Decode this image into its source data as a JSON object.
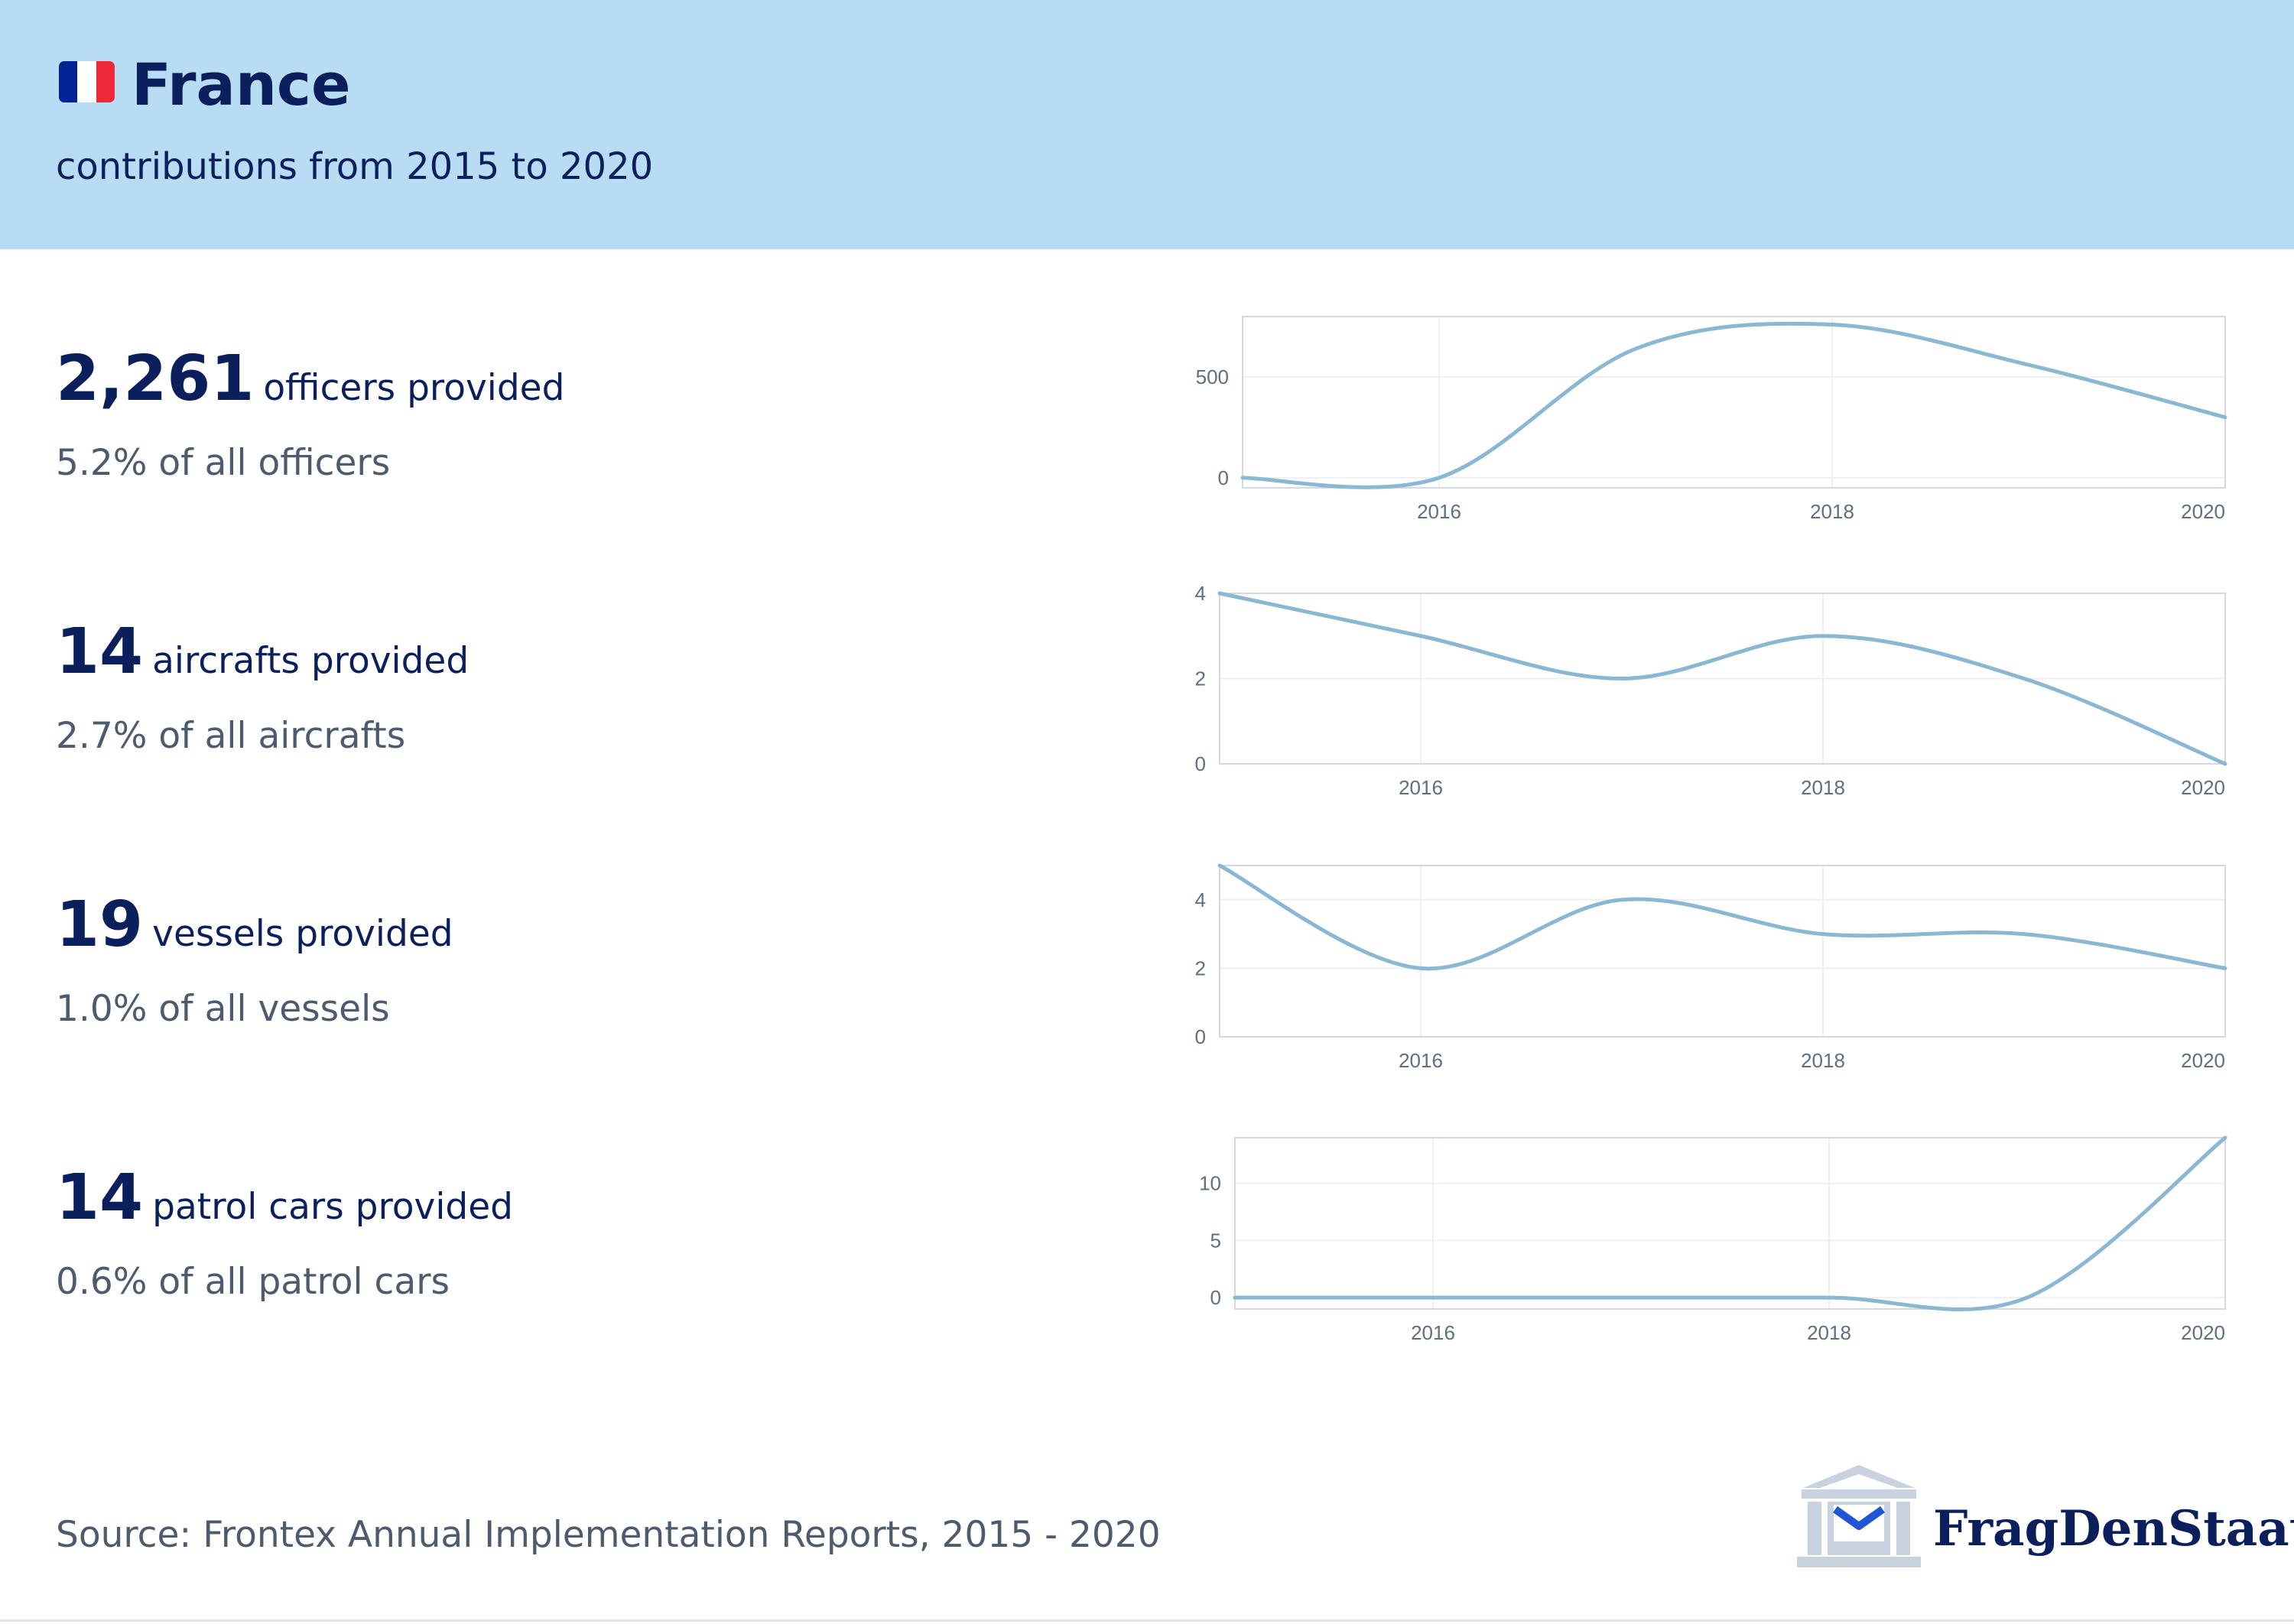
{
  "header": {
    "title": "France",
    "subtitle": "contributions from 2015 to 2020",
    "flag_colors": [
      "#002395",
      "#ffffff",
      "#ED2939"
    ],
    "background": "#b8dcf4"
  },
  "stats": [
    {
      "value": "2,261",
      "label": "officers provided",
      "share": "5.2% of all officers"
    },
    {
      "value": "14",
      "label": "aircrafts provided",
      "share": "2.7% of all aircrafts"
    },
    {
      "value": "19",
      "label": "vessels provided",
      "share": "1.0% of all vessels"
    },
    {
      "value": "14",
      "label": "patrol cars provided",
      "share": "0.6% of all patrol cars"
    }
  ],
  "chart_data": [
    {
      "type": "line",
      "x": [
        2015,
        2016,
        2017,
        2018,
        2019,
        2020
      ],
      "series": [
        {
          "values": [
            0,
            0,
            640,
            760,
            560,
            300
          ]
        }
      ],
      "xlim": [
        2015,
        2020
      ],
      "ylim": [
        -50,
        800
      ],
      "xticks": [
        "2016",
        "2018",
        "2020"
      ],
      "yticks": [
        "0",
        "500"
      ],
      "grid": true,
      "color": "#8ab8d2"
    },
    {
      "type": "line",
      "x": [
        2015,
        2016,
        2017,
        2018,
        2019,
        2020
      ],
      "series": [
        {
          "values": [
            4,
            3,
            2,
            3,
            2,
            0
          ]
        }
      ],
      "xlim": [
        2015,
        2020
      ],
      "ylim": [
        0,
        4
      ],
      "xticks": [
        "2016",
        "2018",
        "2020"
      ],
      "yticks": [
        "0",
        "2",
        "4"
      ],
      "grid": true,
      "color": "#8ab8d2"
    },
    {
      "type": "line",
      "x": [
        2015,
        2016,
        2017,
        2018,
        2019,
        2020
      ],
      "series": [
        {
          "values": [
            5,
            2,
            4,
            3,
            3,
            2
          ]
        }
      ],
      "xlim": [
        2015,
        2020
      ],
      "ylim": [
        0,
        5
      ],
      "xticks": [
        "2016",
        "2018",
        "2020"
      ],
      "yticks": [
        "0",
        "2",
        "4"
      ],
      "grid": true,
      "color": "#8ab8d2"
    },
    {
      "type": "line",
      "x": [
        2015,
        2016,
        2017,
        2018,
        2019,
        2020
      ],
      "series": [
        {
          "values": [
            0,
            0,
            0,
            0,
            0,
            14
          ]
        }
      ],
      "xlim": [
        2015,
        2020
      ],
      "ylim": [
        -1,
        14
      ],
      "xticks": [
        "2016",
        "2018",
        "2020"
      ],
      "yticks": [
        "0",
        "5",
        "10"
      ],
      "grid": true,
      "color": "#8ab8d2"
    }
  ],
  "footer": {
    "source": "Source: Frontex Annual Implementation Reports, 2015 - 2020",
    "logo_text": "FragDenStaat"
  }
}
